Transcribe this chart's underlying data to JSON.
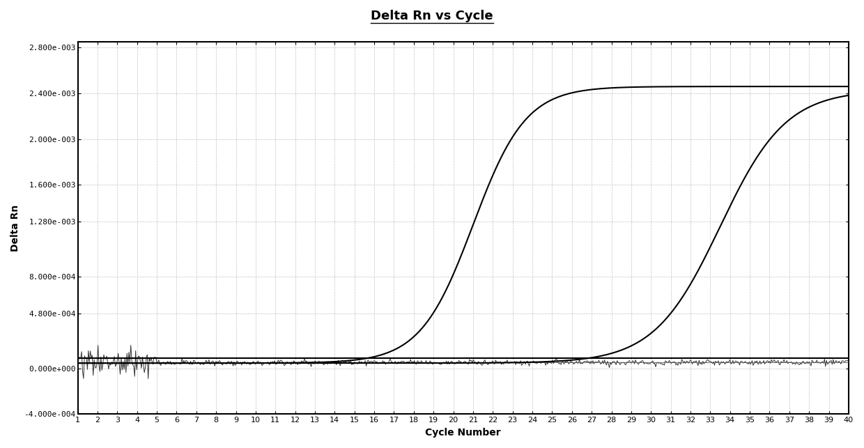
{
  "title": "Delta Rn vs Cycle",
  "xlabel": "Cycle Number",
  "ylabel": "Delta Rn",
  "xlim": [
    1,
    40
  ],
  "ylim": [
    -0.0004,
    0.00285
  ],
  "yticks": [
    -0.0004,
    0.0,
    0.00048,
    0.0008,
    0.00128,
    0.0016,
    0.002,
    0.0024,
    0.0028
  ],
  "ytick_labels": [
    "-4.000e-004",
    "0.000e+000",
    "4.800e-004",
    "8.000e-004",
    "1.280e-003",
    "1.600e-003",
    "2.000e-003",
    "2.400e-003",
    "2.800e-003"
  ],
  "xticks": [
    1,
    2,
    3,
    4,
    5,
    6,
    7,
    8,
    9,
    10,
    11,
    12,
    13,
    14,
    15,
    16,
    17,
    18,
    19,
    20,
    21,
    22,
    23,
    24,
    25,
    26,
    27,
    28,
    29,
    30,
    31,
    32,
    33,
    34,
    35,
    36,
    37,
    38,
    39,
    40
  ],
  "curve1_midpoint": 21.0,
  "curve1_steepness": 0.75,
  "curve1_max": 0.00246,
  "curve1_min": 4.5e-05,
  "curve2_midpoint": 33.5,
  "curve2_steepness": 0.6,
  "curve2_max": 0.00243,
  "curve2_min": 4.5e-05,
  "baseline_value": 5e-05,
  "threshold_value": 9e-05,
  "background_color": "#ffffff",
  "line_color": "#000000",
  "grid_color": "#bbbbbb",
  "title_fontsize": 13,
  "axis_label_fontsize": 10,
  "tick_fontsize": 8
}
